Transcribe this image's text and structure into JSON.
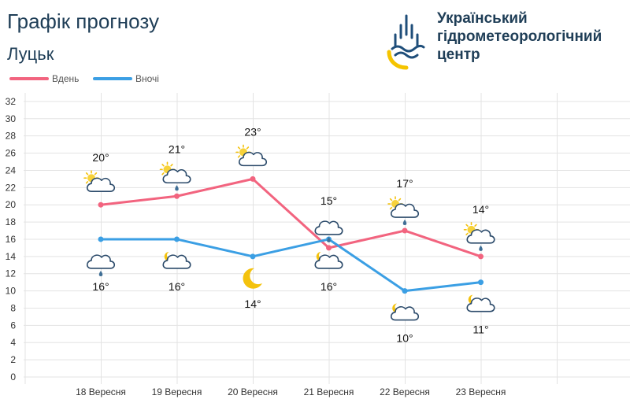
{
  "header": {
    "title": "Графік прогнозу",
    "city": "Луцьк"
  },
  "organization": {
    "name_line1": "Український",
    "name_line2": "гідрометеорологічний",
    "name_line3": "центр",
    "logo_icon": "ukrhydromet-logo-icon",
    "colors": {
      "blue": "#1f4e7a",
      "yellow": "#f5c400"
    }
  },
  "legend": {
    "day_label": "Вдень",
    "night_label": "Вночі"
  },
  "chart_data": {
    "type": "line",
    "categories": [
      "18 Вересня",
      "19 Вересня",
      "20 Вересня",
      "21 Вересня",
      "22 Вересня",
      "23 Вересня"
    ],
    "series": [
      {
        "name": "Вдень",
        "color": "#f2647f",
        "values": [
          20,
          21,
          23,
          15,
          17,
          14
        ],
        "labels": [
          "20°",
          "21°",
          "23°",
          "15°",
          "17°",
          "14°"
        ],
        "icons": [
          "sun-cloud-icon",
          "sun-cloud-rain-icon",
          "sun-cloud-icon",
          "cloud-rain-icon",
          "sun-cloud-rain-icon",
          "sun-cloud-rain-icon"
        ]
      },
      {
        "name": "Вночі",
        "color": "#3b9fe4",
        "values": [
          16,
          16,
          14,
          16,
          10,
          11
        ],
        "labels": [
          "16°",
          "16°",
          "14°",
          "16°",
          "10°",
          "11°"
        ],
        "icons": [
          "cloud-rain-icon",
          "moon-cloud-icon",
          "moon-icon",
          "moon-cloud-icon",
          "moon-cloud-icon",
          "moon-cloud-icon"
        ]
      }
    ],
    "yticks": [
      "0",
      "2",
      "4",
      "6",
      "8",
      "10",
      "12",
      "14",
      "16",
      "18",
      "20",
      "22",
      "24",
      "26",
      "28",
      "30",
      "32"
    ],
    "ylim": [
      0,
      32
    ],
    "grid": true,
    "legend_position": "top-left"
  }
}
